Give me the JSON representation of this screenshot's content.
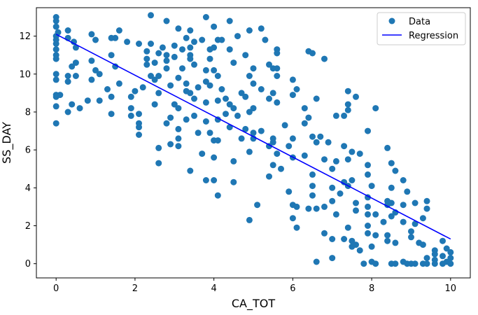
{
  "chart_data": {
    "type": "scatter",
    "title": "",
    "xlabel": "CA_TOT",
    "ylabel": "SS_DAY",
    "xlim": [
      -0.5,
      10.5
    ],
    "ylim": [
      -0.75,
      13.5
    ],
    "xticks": [
      0,
      2,
      4,
      6,
      8,
      10
    ],
    "yticks": [
      0,
      2,
      4,
      6,
      8,
      10,
      12
    ],
    "grid": false,
    "legend": {
      "position": "top-right",
      "entries": [
        "Data",
        "Regression"
      ]
    },
    "colors": {
      "data": "#1f77b4",
      "regression": "#0000ff"
    },
    "regression": {
      "name": "Regression",
      "x": [
        0,
        10
      ],
      "y": [
        12.1,
        1.3
      ]
    },
    "series": [
      {
        "name": "Data",
        "points": [
          [
            0.0,
            13.0
          ],
          [
            0.0,
            12.8
          ],
          [
            0.0,
            12.5
          ],
          [
            0.0,
            12.0
          ],
          [
            0.0,
            11.8
          ],
          [
            0.0,
            11.6
          ],
          [
            0.0,
            11.3
          ],
          [
            0.0,
            11.0
          ],
          [
            0.0,
            10.8
          ],
          [
            0.0,
            10.0
          ],
          [
            0.0,
            9.7
          ],
          [
            0.0,
            8.9
          ],
          [
            0.0,
            8.8
          ],
          [
            0.0,
            8.3
          ],
          [
            0.0,
            7.4
          ],
          [
            0.05,
            12.2
          ],
          [
            0.1,
            8.9
          ],
          [
            0.3,
            12.3
          ],
          [
            0.3,
            11.9
          ],
          [
            0.3,
            9.9
          ],
          [
            0.3,
            9.6
          ],
          [
            0.3,
            8.0
          ],
          [
            0.4,
            8.4
          ],
          [
            0.4,
            10.4
          ],
          [
            0.45,
            11.7
          ],
          [
            0.5,
            11.4
          ],
          [
            0.5,
            10.6
          ],
          [
            0.5,
            9.9
          ],
          [
            0.6,
            8.2
          ],
          [
            0.8,
            8.6
          ],
          [
            0.9,
            12.1
          ],
          [
            0.9,
            10.7
          ],
          [
            0.9,
            9.7
          ],
          [
            1.0,
            10.2
          ],
          [
            1.0,
            11.8
          ],
          [
            1.1,
            10.0
          ],
          [
            1.1,
            8.6
          ],
          [
            1.3,
            9.2
          ],
          [
            1.4,
            11.9
          ],
          [
            1.4,
            11.0
          ],
          [
            1.4,
            7.9
          ],
          [
            1.4,
            8.8
          ],
          [
            1.5,
            10.4
          ],
          [
            1.5,
            11.9
          ],
          [
            1.6,
            12.3
          ],
          [
            1.6,
            9.5
          ],
          [
            1.8,
            11.7
          ],
          [
            1.9,
            8.8
          ],
          [
            1.9,
            8.2
          ],
          [
            1.9,
            7.8
          ],
          [
            2.0,
            9.1
          ],
          [
            2.1,
            11.6
          ],
          [
            2.1,
            7.4
          ],
          [
            2.1,
            6.8
          ],
          [
            2.1,
            7.2
          ],
          [
            2.1,
            7.9
          ],
          [
            2.2,
            9.3
          ],
          [
            2.3,
            10.5
          ],
          [
            2.3,
            11.2
          ],
          [
            2.3,
            10.8
          ],
          [
            2.4,
            13.1
          ],
          [
            2.4,
            9.9
          ],
          [
            2.4,
            11.6
          ],
          [
            2.5,
            8.4
          ],
          [
            2.5,
            10.6
          ],
          [
            2.5,
            9.7
          ],
          [
            2.6,
            9.9
          ],
          [
            2.6,
            11.1
          ],
          [
            2.6,
            9.0
          ],
          [
            2.6,
            6.1
          ],
          [
            2.6,
            5.3
          ],
          [
            2.7,
            11.4
          ],
          [
            2.8,
            12.8
          ],
          [
            2.8,
            11.0
          ],
          [
            2.8,
            7.4
          ],
          [
            2.8,
            10.3
          ],
          [
            2.8,
            10.7
          ],
          [
            2.9,
            9.4
          ],
          [
            2.9,
            7.7
          ],
          [
            2.9,
            6.3
          ],
          [
            3.0,
            10.9
          ],
          [
            3.0,
            8.4
          ],
          [
            3.0,
            11.5
          ],
          [
            3.1,
            12.4
          ],
          [
            3.1,
            9.8
          ],
          [
            3.1,
            8.2
          ],
          [
            3.1,
            7.1
          ],
          [
            3.1,
            6.6
          ],
          [
            3.1,
            6.2
          ],
          [
            3.2,
            11.3
          ],
          [
            3.2,
            10.3
          ],
          [
            3.3,
            11.9
          ],
          [
            3.3,
            9.5
          ],
          [
            3.3,
            9.1
          ],
          [
            3.3,
            7.6
          ],
          [
            3.4,
            12.3
          ],
          [
            3.4,
            11.4
          ],
          [
            3.4,
            11.0
          ],
          [
            3.4,
            10.8
          ],
          [
            3.4,
            9.0
          ],
          [
            3.4,
            4.9
          ],
          [
            3.5,
            11.7
          ],
          [
            3.5,
            10.5
          ],
          [
            3.5,
            8.7
          ],
          [
            3.5,
            7.8
          ],
          [
            3.6,
            9.3
          ],
          [
            3.6,
            6.9
          ],
          [
            3.7,
            11.8
          ],
          [
            3.7,
            5.8
          ],
          [
            3.8,
            10.2
          ],
          [
            3.8,
            13.0
          ],
          [
            3.8,
            9.6
          ],
          [
            3.8,
            8.5
          ],
          [
            3.8,
            7.5
          ],
          [
            3.8,
            4.4
          ],
          [
            3.9,
            11.3
          ],
          [
            3.9,
            10.8
          ],
          [
            3.9,
            9.4
          ],
          [
            3.9,
            6.9
          ],
          [
            4.0,
            12.5
          ],
          [
            4.0,
            11.4
          ],
          [
            4.0,
            10.2
          ],
          [
            4.0,
            6.5
          ],
          [
            4.0,
            5.6
          ],
          [
            4.0,
            4.4
          ],
          [
            4.1,
            11.8
          ],
          [
            4.1,
            9.9
          ],
          [
            4.1,
            8.6
          ],
          [
            4.1,
            7.6
          ],
          [
            4.1,
            6.5
          ],
          [
            4.1,
            3.6
          ],
          [
            4.2,
            11.8
          ],
          [
            4.2,
            9.2
          ],
          [
            4.3,
            8.7
          ],
          [
            4.3,
            7.9
          ],
          [
            4.4,
            8.4
          ],
          [
            4.4,
            7.2
          ],
          [
            4.4,
            12.8
          ],
          [
            4.4,
            11.3
          ],
          [
            4.5,
            10.6
          ],
          [
            4.5,
            8.2
          ],
          [
            4.5,
            5.4
          ],
          [
            4.5,
            4.3
          ],
          [
            4.6,
            12.0
          ],
          [
            4.6,
            7.8
          ],
          [
            4.7,
            9.0
          ],
          [
            4.7,
            6.6
          ],
          [
            4.8,
            11.0
          ],
          [
            4.8,
            8.8
          ],
          [
            4.8,
            7.1
          ],
          [
            4.9,
            12.3
          ],
          [
            4.9,
            9.9
          ],
          [
            4.9,
            8.0
          ],
          [
            4.9,
            5.9
          ],
          [
            4.9,
            2.3
          ],
          [
            5.0,
            10.3
          ],
          [
            5.0,
            9.5
          ],
          [
            5.0,
            8.2
          ],
          [
            5.0,
            6.9
          ],
          [
            5.0,
            6.6
          ],
          [
            5.1,
            3.1
          ],
          [
            5.2,
            12.4
          ],
          [
            5.2,
            9.2
          ],
          [
            5.2,
            7.0
          ],
          [
            5.3,
            11.8
          ],
          [
            5.4,
            10.5
          ],
          [
            5.4,
            8.7
          ],
          [
            5.4,
            6.2
          ],
          [
            5.4,
            4.6
          ],
          [
            5.5,
            10.3
          ],
          [
            5.5,
            9.0
          ],
          [
            5.5,
            6.6
          ],
          [
            5.5,
            6.4
          ],
          [
            5.6,
            11.3
          ],
          [
            5.6,
            11.1
          ],
          [
            5.6,
            10.3
          ],
          [
            5.6,
            9.9
          ],
          [
            5.6,
            8.5
          ],
          [
            5.6,
            5.8
          ],
          [
            5.5,
            5.2
          ],
          [
            5.7,
            5.0
          ],
          [
            5.8,
            7.3
          ],
          [
            5.9,
            6.2
          ],
          [
            5.9,
            3.8
          ],
          [
            6.0,
            9.7
          ],
          [
            6.0,
            8.9
          ],
          [
            6.0,
            6.6
          ],
          [
            6.0,
            5.6
          ],
          [
            6.0,
            3.1
          ],
          [
            6.0,
            2.4
          ],
          [
            6.1,
            9.2
          ],
          [
            6.1,
            3.0
          ],
          [
            6.1,
            1.9
          ],
          [
            6.3,
            8.2
          ],
          [
            6.3,
            7.4
          ],
          [
            6.3,
            5.7
          ],
          [
            6.4,
            7.7
          ],
          [
            6.4,
            2.9
          ],
          [
            6.4,
            11.2
          ],
          [
            6.5,
            11.1
          ],
          [
            6.5,
            6.7
          ],
          [
            6.5,
            4.7
          ],
          [
            6.5,
            4.1
          ],
          [
            6.5,
            3.6
          ],
          [
            6.6,
            8.7
          ],
          [
            6.6,
            6.4
          ],
          [
            6.6,
            2.9
          ],
          [
            6.6,
            0.1
          ],
          [
            6.7,
            6.7
          ],
          [
            6.8,
            10.8
          ],
          [
            6.8,
            5.5
          ],
          [
            6.8,
            3.0
          ],
          [
            6.8,
            1.6
          ],
          [
            6.9,
            6.4
          ],
          [
            7.0,
            5.0
          ],
          [
            7.0,
            4.0
          ],
          [
            7.0,
            3.3
          ],
          [
            7.0,
            1.3
          ],
          [
            7.0,
            0.3
          ],
          [
            7.1,
            7.8
          ],
          [
            7.1,
            5.4
          ],
          [
            7.1,
            2.6
          ],
          [
            7.2,
            3.7
          ],
          [
            7.3,
            7.8
          ],
          [
            7.3,
            6.2
          ],
          [
            7.3,
            4.3
          ],
          [
            7.3,
            1.3
          ],
          [
            7.4,
            9.1
          ],
          [
            7.4,
            8.4
          ],
          [
            7.4,
            8.1
          ],
          [
            7.4,
            5.5
          ],
          [
            7.4,
            4.1
          ],
          [
            7.4,
            1.9
          ],
          [
            7.5,
            5.9
          ],
          [
            7.5,
            4.4
          ],
          [
            7.5,
            1.2
          ],
          [
            7.5,
            0.9
          ],
          [
            7.6,
            8.8
          ],
          [
            7.6,
            3.2
          ],
          [
            7.6,
            2.8
          ],
          [
            7.6,
            1.0
          ],
          [
            7.7,
            0.7
          ],
          [
            7.7,
            5.8
          ],
          [
            7.8,
            0.0
          ],
          [
            7.9,
            7.0
          ],
          [
            7.9,
            5.2
          ],
          [
            7.9,
            4.7
          ],
          [
            7.9,
            3.5
          ],
          [
            7.9,
            3.0
          ],
          [
            7.9,
            2.6
          ],
          [
            7.9,
            2.0
          ],
          [
            7.9,
            1.6
          ],
          [
            8.0,
            4.1
          ],
          [
            8.0,
            0.9
          ],
          [
            8.0,
            0.1
          ],
          [
            8.1,
            8.2
          ],
          [
            8.1,
            2.6
          ],
          [
            8.1,
            1.5
          ],
          [
            8.1,
            0.0
          ],
          [
            8.3,
            2.2
          ],
          [
            8.4,
            6.1
          ],
          [
            8.4,
            3.3
          ],
          [
            8.4,
            3.1
          ],
          [
            8.4,
            1.5
          ],
          [
            8.4,
            1.2
          ],
          [
            8.5,
            5.3
          ],
          [
            8.5,
            4.0
          ],
          [
            8.5,
            3.2
          ],
          [
            8.5,
            2.5
          ],
          [
            8.5,
            0.0
          ],
          [
            8.6,
            4.9
          ],
          [
            8.6,
            2.7
          ],
          [
            8.6,
            1.1
          ],
          [
            8.6,
            0.0
          ],
          [
            8.8,
            4.4
          ],
          [
            8.8,
            3.1
          ],
          [
            8.8,
            2.2
          ],
          [
            8.8,
            0.1
          ],
          [
            8.9,
            3.8
          ],
          [
            8.9,
            0.0
          ],
          [
            9.0,
            1.7
          ],
          [
            9.0,
            1.4
          ],
          [
            9.0,
            0.0
          ],
          [
            9.1,
            3.2
          ],
          [
            9.1,
            2.1
          ],
          [
            9.1,
            0.0
          ],
          [
            9.2,
            1.1
          ],
          [
            9.3,
            2.4
          ],
          [
            9.3,
            1.0
          ],
          [
            9.3,
            0.0
          ],
          [
            9.4,
            3.3
          ],
          [
            9.4,
            2.9
          ],
          [
            9.4,
            0.3
          ],
          [
            9.4,
            0.0
          ],
          [
            9.6,
            0.7
          ],
          [
            9.6,
            0.5
          ],
          [
            9.6,
            0.2
          ],
          [
            9.6,
            0.0
          ],
          [
            9.8,
            1.2
          ],
          [
            9.8,
            0.4
          ],
          [
            9.8,
            0.0
          ],
          [
            9.9,
            0.8
          ],
          [
            9.9,
            0.1
          ],
          [
            10.0,
            0.6
          ],
          [
            10.0,
            0.3
          ],
          [
            10.0,
            0.0
          ]
        ]
      }
    ]
  }
}
